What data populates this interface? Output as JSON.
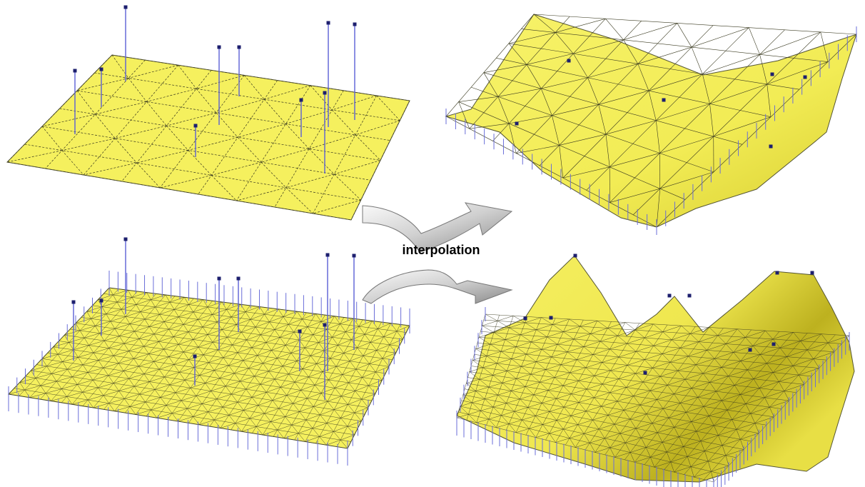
{
  "caption": "interpolation",
  "colors": {
    "surface": "#f5f05e",
    "surface_shade": "#c9bf24",
    "edge": "#2a2a1a",
    "pin": "#5a5fd6",
    "pin_head": "#1d1f6e",
    "arrow_light": "#f2f2f2",
    "arrow_dark": "#8e8e8e"
  },
  "panels": [
    {
      "id": "coarse-flat",
      "type": "flat-mesh",
      "mesh_density": "coarse"
    },
    {
      "id": "coarse-interpolated",
      "type": "interpolated-surface",
      "mesh_density": "coarse"
    },
    {
      "id": "fine-flat",
      "type": "flat-mesh",
      "mesh_density": "fine"
    },
    {
      "id": "fine-interpolated",
      "type": "interpolated-surface",
      "mesh_density": "fine"
    }
  ],
  "arrows": [
    {
      "id": "upper-arrow",
      "direction": "right"
    },
    {
      "id": "lower-arrow",
      "direction": "right"
    }
  ]
}
